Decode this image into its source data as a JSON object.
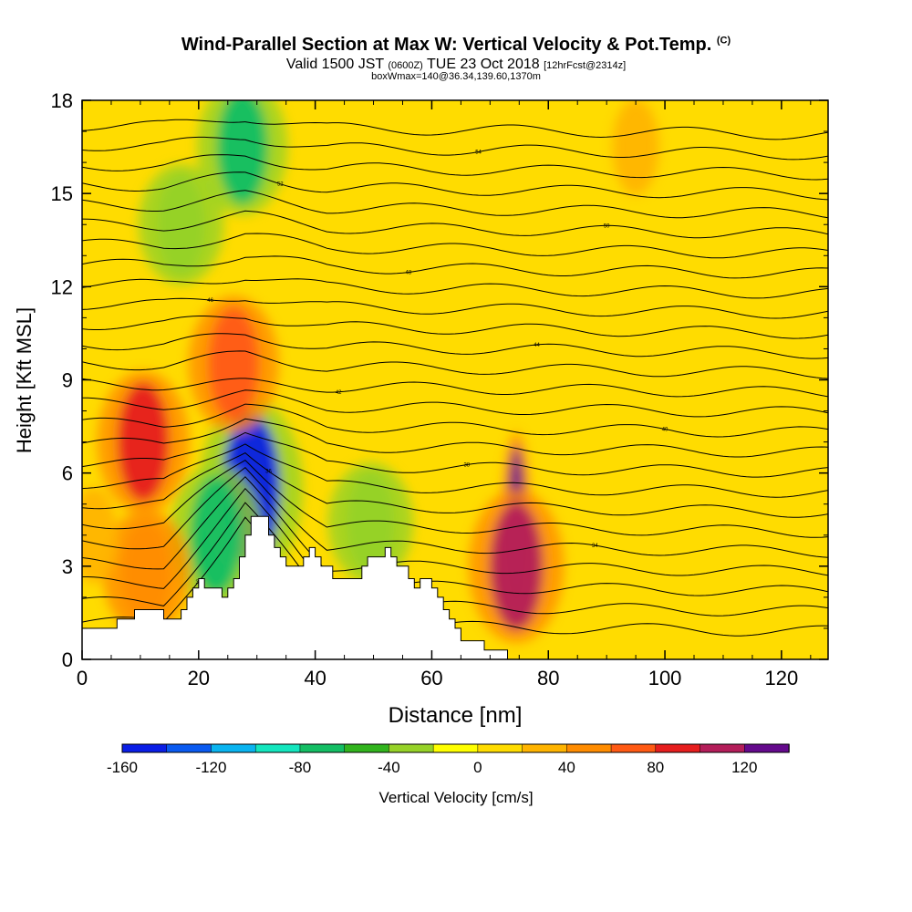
{
  "title": {
    "main": "Wind-Parallel Section at Max W: Vertical Velocity & Pot.Temp.",
    "copyright": "(C)",
    "valid_pre": "Valid 1500 JST",
    "valid_utc": "(0600Z)",
    "valid_post": "TUE 23 Oct 2018",
    "forecast": "[12hrFcst@2314z]",
    "box": "boxWmax=140@36.34,139.60,1370m"
  },
  "chart_data": {
    "type": "heatmap",
    "xlabel": "Distance [nm]",
    "ylabel": "Height [Kft MSL]",
    "xlim": [
      0,
      128
    ],
    "ylim": [
      0,
      18
    ],
    "x_ticks": [
      "0",
      "20",
      "40",
      "60",
      "80",
      "100",
      "120"
    ],
    "x_tick_values": [
      0,
      20,
      40,
      60,
      80,
      100,
      120
    ],
    "y_ticks": [
      "0",
      "3",
      "6",
      "9",
      "12",
      "15",
      "18"
    ],
    "y_tick_values": [
      0,
      3,
      6,
      9,
      12,
      15,
      18
    ],
    "colorbar": {
      "label": "Vertical Velocity [cm/s]",
      "tick_labels": [
        "-160",
        "-120",
        "-80",
        "-40",
        "0",
        "40",
        "80",
        "120"
      ],
      "tick_values": [
        -160,
        -120,
        -80,
        -40,
        0,
        40,
        80,
        120
      ],
      "range": [
        -160,
        140
      ],
      "colors": [
        "#0a1ee6",
        "#0a5af0",
        "#0ab4f0",
        "#14e6be",
        "#14be64",
        "#32b41e",
        "#96d228",
        "#ffff00",
        "#ffdc00",
        "#ffb400",
        "#ff8c00",
        "#ff5a14",
        "#e61e1e",
        "#b41e5a",
        "#640a8c"
      ]
    },
    "terrain_kft": [
      [
        0,
        1
      ],
      [
        5,
        1
      ],
      [
        6,
        1.3
      ],
      [
        8,
        1.3
      ],
      [
        9,
        1.6
      ],
      [
        13,
        1.6
      ],
      [
        14,
        1.3
      ],
      [
        16,
        1.3
      ],
      [
        17,
        1.6
      ],
      [
        18,
        2
      ],
      [
        19,
        2.3
      ],
      [
        20,
        2.6
      ],
      [
        21,
        2.3
      ],
      [
        23,
        2.3
      ],
      [
        24,
        2
      ],
      [
        25,
        2.3
      ],
      [
        26,
        2.6
      ],
      [
        27,
        3.3
      ],
      [
        28,
        4
      ],
      [
        29,
        4.6
      ],
      [
        31,
        4.6
      ],
      [
        32,
        4
      ],
      [
        33,
        3.6
      ],
      [
        34,
        3.3
      ],
      [
        35,
        3
      ],
      [
        37,
        3
      ],
      [
        38,
        3.3
      ],
      [
        39,
        3.6
      ],
      [
        40,
        3.3
      ],
      [
        41,
        3
      ],
      [
        42,
        3
      ],
      [
        43,
        2.6
      ],
      [
        47,
        2.6
      ],
      [
        48,
        3
      ],
      [
        49,
        3.3
      ],
      [
        51,
        3.3
      ],
      [
        52,
        3.6
      ],
      [
        53,
        3.3
      ],
      [
        54,
        3
      ],
      [
        56,
        2.6
      ],
      [
        57,
        2.3
      ],
      [
        58,
        2.6
      ],
      [
        59,
        2.6
      ],
      [
        60,
        2.3
      ],
      [
        61,
        2
      ],
      [
        62,
        1.6
      ],
      [
        63,
        1.3
      ],
      [
        64,
        1
      ],
      [
        65,
        0.6
      ],
      [
        68,
        0.6
      ],
      [
        69,
        0.3
      ],
      [
        72,
        0.3
      ],
      [
        73,
        0
      ],
      [
        128,
        0
      ]
    ],
    "features": [
      {
        "x": 74.5,
        "y": 4.5,
        "w_cms": 140
      },
      {
        "x": 74.5,
        "y": 3,
        "w_cms": 100
      },
      {
        "x": 29,
        "y": 5.5,
        "w_cms": -150
      },
      {
        "x": 23,
        "y": 4,
        "w_cms": -80
      },
      {
        "x": 26,
        "y": 9.5,
        "w_cms": 70
      },
      {
        "x": 10.5,
        "y": 7,
        "w_cms": 80
      },
      {
        "x": 11,
        "y": 2.8,
        "w_cms": 50
      },
      {
        "x": 27.5,
        "y": 16.5,
        "w_cms": -70
      },
      {
        "x": 17,
        "y": 14,
        "w_cms": -40
      },
      {
        "x": 49.5,
        "y": 4.4,
        "w_cms": -40
      },
      {
        "x": 95,
        "y": 16.5,
        "w_cms": 30
      },
      {
        "x": 2,
        "y": 4,
        "w_cms": 30
      }
    ],
    "theta_labels": [
      "30",
      "32",
      "34",
      "36",
      "38",
      "40",
      "42",
      "44",
      "46",
      "48",
      "50",
      "52",
      "54",
      "56"
    ]
  }
}
